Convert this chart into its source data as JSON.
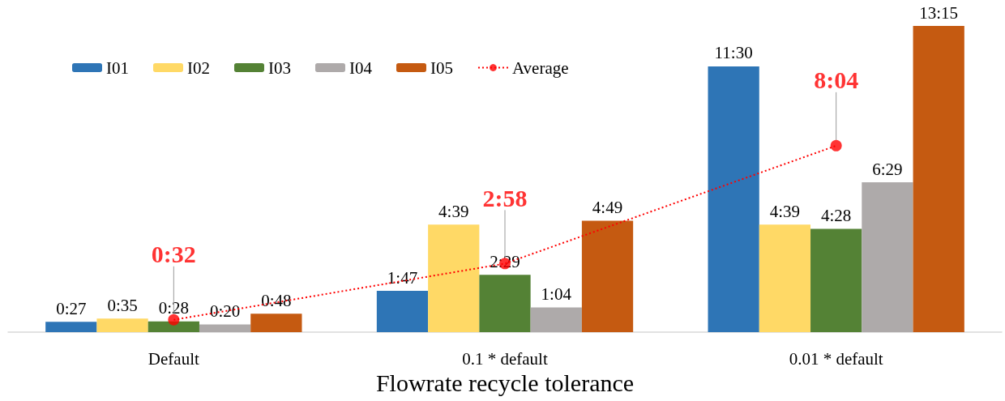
{
  "chart_data": {
    "type": "bar",
    "xlabel": "Flowrate recycle tolerance",
    "categories": [
      "Default",
      "0.1 * default",
      "0.01 * default"
    ],
    "series": [
      {
        "name": "I01",
        "color": "#2e75b6",
        "values": [
          27,
          107,
          690
        ],
        "value_labels": [
          "0:27",
          "1:47",
          "11:30"
        ]
      },
      {
        "name": "I02",
        "color": "#ffd966",
        "values": [
          35,
          279,
          279
        ],
        "value_labels": [
          "0:35",
          "4:39",
          "4:39"
        ]
      },
      {
        "name": "I03",
        "color": "#548235",
        "values": [
          28,
          149,
          268
        ],
        "value_labels": [
          "0:28",
          "2:29",
          "4:28"
        ]
      },
      {
        "name": "I04",
        "color": "#aeaaaa",
        "values": [
          20,
          64,
          389
        ],
        "value_labels": [
          "0:20",
          "1:04",
          "6:29"
        ]
      },
      {
        "name": "I05",
        "color": "#c55a11",
        "values": [
          48,
          289,
          795
        ],
        "value_labels": [
          "0:48",
          "4:49",
          "13:15"
        ]
      },
      {
        "name": "Average",
        "type": "line",
        "color": "#ff0000",
        "values": [
          32,
          178,
          484
        ],
        "value_labels": [
          "0:32",
          "2:58",
          "8:04"
        ]
      }
    ],
    "legend": "top left",
    "marker": "circle",
    "line_style": "dotted"
  }
}
